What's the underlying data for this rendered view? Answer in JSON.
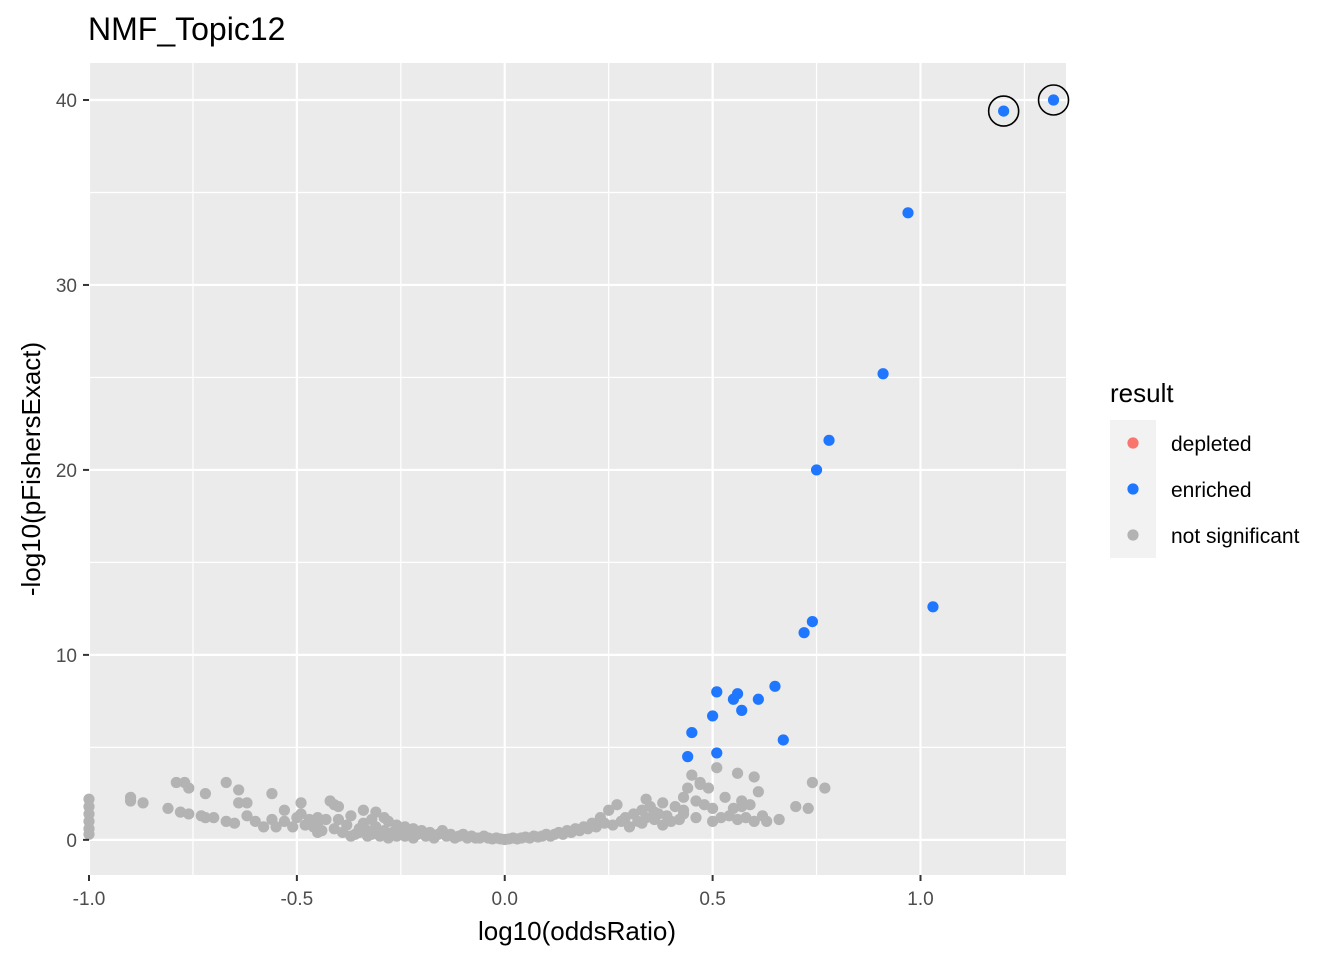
{
  "chart_data": {
    "type": "scatter",
    "title": "NMF_Topic12",
    "xlabel": "log10(oddsRatio)",
    "ylabel": "-log10(pFishersExact)",
    "xlim": [
      -1.0,
      1.35
    ],
    "ylim": [
      -1.9,
      42.0
    ],
    "x_ticks": [
      -1.0,
      -0.5,
      0.0,
      0.5,
      1.0
    ],
    "x_tick_labels": [
      "-1.0",
      "-0.5",
      "0.0",
      "0.5",
      "1.0"
    ],
    "y_ticks": [
      0,
      10,
      20,
      30,
      40
    ],
    "y_tick_labels": [
      "0",
      "10",
      "20",
      "30",
      "40"
    ],
    "grid": true,
    "legend": {
      "title": "result",
      "position": "right",
      "entries": [
        {
          "label": "depleted",
          "color": "#F8766D"
        },
        {
          "label": "enriched",
          "color": "#1F77FF"
        },
        {
          "label": "not significant",
          "color": "#B3B3B3"
        }
      ]
    },
    "series": [
      {
        "name": "enriched",
        "color": "#1F77FF",
        "points": [
          [
            1.32,
            40.0
          ],
          [
            1.2,
            39.4
          ],
          [
            0.97,
            33.9
          ],
          [
            0.91,
            25.2
          ],
          [
            0.78,
            21.6
          ],
          [
            0.75,
            20.0
          ],
          [
            1.03,
            12.6
          ],
          [
            0.74,
            11.8
          ],
          [
            0.72,
            11.2
          ],
          [
            0.65,
            8.3
          ],
          [
            0.51,
            8.0
          ],
          [
            0.56,
            7.9
          ],
          [
            0.55,
            7.6
          ],
          [
            0.61,
            7.6
          ],
          [
            0.57,
            7.0
          ],
          [
            0.5,
            6.7
          ],
          [
            0.45,
            5.8
          ],
          [
            0.67,
            5.4
          ],
          [
            0.51,
            4.7
          ],
          [
            0.44,
            4.5
          ]
        ]
      },
      {
        "name": "not significant",
        "color": "#B3B3B3",
        "points": [
          [
            -1.0,
            2.2
          ],
          [
            -1.0,
            1.8
          ],
          [
            -1.0,
            1.4
          ],
          [
            -1.0,
            1.0
          ],
          [
            -1.0,
            0.6
          ],
          [
            -1.0,
            0.3
          ],
          [
            -0.9,
            2.3
          ],
          [
            -0.9,
            2.1
          ],
          [
            -0.87,
            2.0
          ],
          [
            -0.81,
            1.7
          ],
          [
            -0.79,
            3.1
          ],
          [
            -0.77,
            3.1
          ],
          [
            -0.76,
            2.8
          ],
          [
            -0.78,
            1.5
          ],
          [
            -0.76,
            1.4
          ],
          [
            -0.73,
            1.3
          ],
          [
            -0.72,
            2.5
          ],
          [
            -0.72,
            1.2
          ],
          [
            -0.7,
            1.2
          ],
          [
            -0.67,
            3.1
          ],
          [
            -0.67,
            1.0
          ],
          [
            -0.65,
            0.9
          ],
          [
            -0.64,
            2.7
          ],
          [
            -0.64,
            2.0
          ],
          [
            -0.62,
            2.0
          ],
          [
            -0.62,
            1.3
          ],
          [
            -0.6,
            1.0
          ],
          [
            -0.58,
            0.7
          ],
          [
            -0.56,
            2.5
          ],
          [
            -0.56,
            1.1
          ],
          [
            -0.55,
            0.7
          ],
          [
            -0.53,
            1.6
          ],
          [
            -0.53,
            1.0
          ],
          [
            -0.51,
            0.7
          ],
          [
            -0.5,
            1.2
          ],
          [
            -0.49,
            1.4
          ],
          [
            -0.49,
            2.0
          ],
          [
            -0.48,
            0.8
          ],
          [
            -0.47,
            1.1
          ],
          [
            -0.46,
            0.7
          ],
          [
            -0.45,
            1.2
          ],
          [
            -0.45,
            0.4
          ],
          [
            -0.45,
            0.9
          ],
          [
            -0.44,
            0.5
          ],
          [
            -0.43,
            1.1
          ],
          [
            -0.42,
            2.1
          ],
          [
            -0.41,
            1.9
          ],
          [
            -0.41,
            0.6
          ],
          [
            -0.4,
            1.8
          ],
          [
            -0.4,
            1.1
          ],
          [
            -0.39,
            0.4
          ],
          [
            -0.38,
            0.8
          ],
          [
            -0.37,
            1.3
          ],
          [
            -0.36,
            0.3
          ],
          [
            -0.37,
            0.2
          ],
          [
            -0.35,
            0.6
          ],
          [
            -0.35,
            0.4
          ],
          [
            -0.34,
            1.6
          ],
          [
            -0.34,
            0.9
          ],
          [
            -0.33,
            0.5
          ],
          [
            -0.33,
            0.2
          ],
          [
            -0.32,
            1.1
          ],
          [
            -0.32,
            0.3
          ],
          [
            -0.31,
            1.5
          ],
          [
            -0.31,
            0.7
          ],
          [
            -0.3,
            0.2
          ],
          [
            -0.29,
            1.2
          ],
          [
            -0.29,
            0.5
          ],
          [
            -0.28,
            1.0
          ],
          [
            -0.28,
            0.1
          ],
          [
            -0.27,
            0.4
          ],
          [
            -0.26,
            0.2
          ],
          [
            -0.26,
            0.8
          ],
          [
            -0.25,
            0.4
          ],
          [
            -0.24,
            0.7
          ],
          [
            -0.24,
            0.2
          ],
          [
            -0.23,
            0.5
          ],
          [
            -0.22,
            0.1
          ],
          [
            -0.22,
            0.6
          ],
          [
            -0.21,
            0.3
          ],
          [
            -0.2,
            0.5
          ],
          [
            -0.19,
            0.2
          ],
          [
            -0.18,
            0.4
          ],
          [
            -0.17,
            0.1
          ],
          [
            -0.16,
            0.3
          ],
          [
            -0.15,
            0.5
          ],
          [
            -0.14,
            0.2
          ],
          [
            -0.13,
            0.3
          ],
          [
            -0.12,
            0.1
          ],
          [
            -0.11,
            0.2
          ],
          [
            -0.1,
            0.3
          ],
          [
            -0.09,
            0.1
          ],
          [
            -0.08,
            0.2
          ],
          [
            -0.07,
            0.1
          ],
          [
            -0.06,
            0.1
          ],
          [
            -0.05,
            0.2
          ],
          [
            -0.04,
            0.1
          ],
          [
            -0.03,
            0.05
          ],
          [
            -0.02,
            0.1
          ],
          [
            -0.01,
            0.05
          ],
          [
            0.0,
            0.02
          ],
          [
            0.01,
            0.05
          ],
          [
            0.02,
            0.1
          ],
          [
            0.03,
            0.05
          ],
          [
            0.04,
            0.1
          ],
          [
            0.05,
            0.15
          ],
          [
            0.06,
            0.1
          ],
          [
            0.07,
            0.2
          ],
          [
            0.08,
            0.15
          ],
          [
            0.09,
            0.2
          ],
          [
            0.1,
            0.3
          ],
          [
            0.11,
            0.2
          ],
          [
            0.12,
            0.3
          ],
          [
            0.13,
            0.4
          ],
          [
            0.14,
            0.3
          ],
          [
            0.15,
            0.5
          ],
          [
            0.16,
            0.4
          ],
          [
            0.17,
            0.6
          ],
          [
            0.18,
            0.5
          ],
          [
            0.19,
            0.7
          ],
          [
            0.2,
            0.6
          ],
          [
            0.21,
            0.9
          ],
          [
            0.22,
            0.7
          ],
          [
            0.23,
            1.2
          ],
          [
            0.24,
            0.9
          ],
          [
            0.25,
            1.6
          ],
          [
            0.26,
            0.8
          ],
          [
            0.27,
            1.9
          ],
          [
            0.28,
            1.0
          ],
          [
            0.29,
            1.2
          ],
          [
            0.3,
            0.7
          ],
          [
            0.31,
            1.4
          ],
          [
            0.32,
            1.0
          ],
          [
            0.33,
            1.6
          ],
          [
            0.34,
            2.2
          ],
          [
            0.34,
            1.2
          ],
          [
            0.35,
            1.8
          ],
          [
            0.36,
            1.1
          ],
          [
            0.37,
            1.4
          ],
          [
            0.38,
            0.8
          ],
          [
            0.38,
            2.0
          ],
          [
            0.39,
            1.3
          ],
          [
            0.4,
            1.0
          ],
          [
            0.41,
            1.8
          ],
          [
            0.42,
            1.1
          ],
          [
            0.43,
            2.3
          ],
          [
            0.43,
            1.4
          ],
          [
            0.44,
            2.8
          ],
          [
            0.45,
            3.5
          ],
          [
            0.46,
            2.1
          ],
          [
            0.46,
            1.2
          ],
          [
            0.47,
            3.0
          ],
          [
            0.48,
            1.9
          ],
          [
            0.49,
            2.8
          ],
          [
            0.5,
            1.0
          ],
          [
            0.5,
            1.7
          ],
          [
            0.51,
            3.9
          ],
          [
            0.52,
            1.2
          ],
          [
            0.53,
            2.3
          ],
          [
            0.54,
            1.3
          ],
          [
            0.55,
            1.7
          ],
          [
            0.56,
            1.1
          ],
          [
            0.57,
            2.1
          ],
          [
            0.58,
            1.2
          ],
          [
            0.59,
            1.9
          ],
          [
            0.6,
            1.0
          ],
          [
            0.61,
            2.6
          ],
          [
            0.62,
            1.3
          ],
          [
            0.56,
            3.6
          ],
          [
            0.6,
            3.4
          ],
          [
            0.57,
            1.8
          ],
          [
            0.63,
            1.0
          ],
          [
            0.66,
            1.1
          ],
          [
            0.7,
            1.8
          ],
          [
            0.73,
            1.7
          ],
          [
            0.74,
            3.1
          ],
          [
            0.77,
            2.8
          ],
          [
            0.47,
            3.1
          ],
          [
            0.43,
            1.6
          ],
          [
            0.36,
            1.5
          ],
          [
            0.33,
            0.9
          ]
        ]
      }
    ]
  }
}
